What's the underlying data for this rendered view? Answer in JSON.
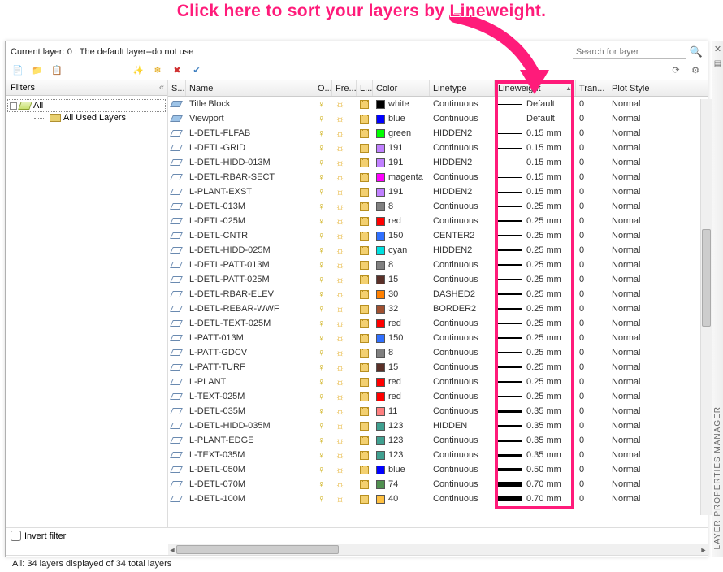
{
  "banner": "Click here to sort your layers by Lineweight.",
  "highlight_color": "#ff1b7a",
  "current_layer_text": "Current layer: 0 : The default layer--do not use",
  "search_placeholder": "Search for layer",
  "filters_header": "Filters",
  "tree": {
    "all": "All",
    "used": "All Used Layers"
  },
  "invert_label": "Invert filter",
  "status_text": "All: 34 layers displayed of 34 total layers",
  "side_label": "LAYER PROPERTIES MANAGER",
  "columns": {
    "s": "S...",
    "name": "Name",
    "on": "O...",
    "freeze": "Fre...",
    "lock": "L...",
    "color": "Color",
    "linetype": "Linetype",
    "lineweight": "Lineweight",
    "trans": "Tran...",
    "plot": "Plot Style"
  },
  "layers": [
    {
      "s": 1,
      "name": "Title Block",
      "col": "white",
      "hex": "#000000",
      "lt": "Continuous",
      "lw": "Default",
      "lww": 1,
      "tr": "0",
      "ps": "Normal"
    },
    {
      "s": 1,
      "name": "Viewport",
      "col": "blue",
      "hex": "#0000ff",
      "lt": "Continuous",
      "lw": "Default",
      "lww": 1,
      "tr": "0",
      "ps": "Normal"
    },
    {
      "s": 0,
      "name": "L-DETL-FLFAB",
      "col": "green",
      "hex": "#00ff00",
      "lt": "HIDDEN2",
      "lw": "0.15 mm",
      "lww": 1,
      "tr": "0",
      "ps": "Normal"
    },
    {
      "s": 0,
      "name": "L-DETL-GRID",
      "col": "191",
      "hex": "#c080ff",
      "lt": "Continuous",
      "lw": "0.15 mm",
      "lww": 1,
      "tr": "0",
      "ps": "Normal"
    },
    {
      "s": 0,
      "name": "L-DETL-HIDD-013M",
      "col": "191",
      "hex": "#c080ff",
      "lt": "HIDDEN2",
      "lw": "0.15 mm",
      "lww": 1,
      "tr": "0",
      "ps": "Normal"
    },
    {
      "s": 0,
      "name": "L-DETL-RBAR-SECT",
      "col": "magenta",
      "hex": "#ff00ff",
      "lt": "Continuous",
      "lw": "0.15 mm",
      "lww": 1,
      "tr": "0",
      "ps": "Normal"
    },
    {
      "s": 0,
      "name": "L-PLANT-EXST",
      "col": "191",
      "hex": "#c080ff",
      "lt": "HIDDEN2",
      "lw": "0.15 mm",
      "lww": 1,
      "tr": "0",
      "ps": "Normal"
    },
    {
      "s": 0,
      "name": "L-DETL-013M",
      "col": "8",
      "hex": "#808080",
      "lt": "Continuous",
      "lw": "0.25 mm",
      "lww": 2,
      "tr": "0",
      "ps": "Normal"
    },
    {
      "s": 0,
      "name": "L-DETL-025M",
      "col": "red",
      "hex": "#ff0000",
      "lt": "Continuous",
      "lw": "0.25 mm",
      "lww": 2,
      "tr": "0",
      "ps": "Normal"
    },
    {
      "s": 0,
      "name": "L-DETL-CNTR",
      "col": "150",
      "hex": "#3070ff",
      "lt": "CENTER2",
      "lw": "0.25 mm",
      "lww": 2,
      "tr": "0",
      "ps": "Normal"
    },
    {
      "s": 0,
      "name": "L-DETL-HIDD-025M",
      "col": "cyan",
      "hex": "#00e0e0",
      "lt": "HIDDEN2",
      "lw": "0.25 mm",
      "lww": 2,
      "tr": "0",
      "ps": "Normal"
    },
    {
      "s": 0,
      "name": "L-DETL-PATT-013M",
      "col": "8",
      "hex": "#808080",
      "lt": "Continuous",
      "lw": "0.25 mm",
      "lww": 2,
      "tr": "0",
      "ps": "Normal"
    },
    {
      "s": 0,
      "name": "L-DETL-PATT-025M",
      "col": "15",
      "hex": "#5a3028",
      "lt": "Continuous",
      "lw": "0.25 mm",
      "lww": 2,
      "tr": "0",
      "ps": "Normal"
    },
    {
      "s": 0,
      "name": "L-DETL-RBAR-ELEV",
      "col": "30",
      "hex": "#ff8000",
      "lt": "DASHED2",
      "lw": "0.25 mm",
      "lww": 2,
      "tr": "0",
      "ps": "Normal"
    },
    {
      "s": 0,
      "name": "L-DETL-REBAR-WWF",
      "col": "32",
      "hex": "#a05030",
      "lt": "BORDER2",
      "lw": "0.25 mm",
      "lww": 2,
      "tr": "0",
      "ps": "Normal"
    },
    {
      "s": 0,
      "name": "L-DETL-TEXT-025M",
      "col": "red",
      "hex": "#ff0000",
      "lt": "Continuous",
      "lw": "0.25 mm",
      "lww": 2,
      "tr": "0",
      "ps": "Normal"
    },
    {
      "s": 0,
      "name": "L-PATT-013M",
      "col": "150",
      "hex": "#3070ff",
      "lt": "Continuous",
      "lw": "0.25 mm",
      "lww": 2,
      "tr": "0",
      "ps": "Normal"
    },
    {
      "s": 0,
      "name": "L-PATT-GDCV",
      "col": "8",
      "hex": "#808080",
      "lt": "Continuous",
      "lw": "0.25 mm",
      "lww": 2,
      "tr": "0",
      "ps": "Normal"
    },
    {
      "s": 0,
      "name": "L-PATT-TURF",
      "col": "15",
      "hex": "#5a3028",
      "lt": "Continuous",
      "lw": "0.25 mm",
      "lww": 2,
      "tr": "0",
      "ps": "Normal"
    },
    {
      "s": 0,
      "name": "L-PLANT",
      "col": "red",
      "hex": "#ff0000",
      "lt": "Continuous",
      "lw": "0.25 mm",
      "lww": 2,
      "tr": "0",
      "ps": "Normal"
    },
    {
      "s": 0,
      "name": "L-TEXT-025M",
      "col": "red",
      "hex": "#ff0000",
      "lt": "Continuous",
      "lw": "0.25 mm",
      "lww": 2,
      "tr": "0",
      "ps": "Normal"
    },
    {
      "s": 0,
      "name": "L-DETL-035M",
      "col": "11",
      "hex": "#ff8080",
      "lt": "Continuous",
      "lw": "0.35 mm",
      "lww": 3,
      "tr": "0",
      "ps": "Normal"
    },
    {
      "s": 0,
      "name": "L-DETL-HIDD-035M",
      "col": "123",
      "hex": "#40a090",
      "lt": "HIDDEN",
      "lw": "0.35 mm",
      "lww": 3,
      "tr": "0",
      "ps": "Normal"
    },
    {
      "s": 0,
      "name": "L-PLANT-EDGE",
      "col": "123",
      "hex": "#40a090",
      "lt": "Continuous",
      "lw": "0.35 mm",
      "lww": 3,
      "tr": "0",
      "ps": "Normal"
    },
    {
      "s": 0,
      "name": "L-TEXT-035M",
      "col": "123",
      "hex": "#40a090",
      "lt": "Continuous",
      "lw": "0.35 mm",
      "lww": 3,
      "tr": "0",
      "ps": "Normal"
    },
    {
      "s": 0,
      "name": "L-DETL-050M",
      "col": "blue",
      "hex": "#0000ff",
      "lt": "Continuous",
      "lw": "0.50 mm",
      "lww": 4,
      "tr": "0",
      "ps": "Normal"
    },
    {
      "s": 0,
      "name": "L-DETL-070M",
      "col": "74",
      "hex": "#509050",
      "lt": "Continuous",
      "lw": "0.70 mm",
      "lww": 6,
      "tr": "0",
      "ps": "Normal"
    },
    {
      "s": 0,
      "name": "L-DETL-100M",
      "col": "40",
      "hex": "#ffc040",
      "lt": "Continuous",
      "lw": "0.70 mm",
      "lww": 6,
      "tr": "0",
      "ps": "Normal"
    }
  ]
}
